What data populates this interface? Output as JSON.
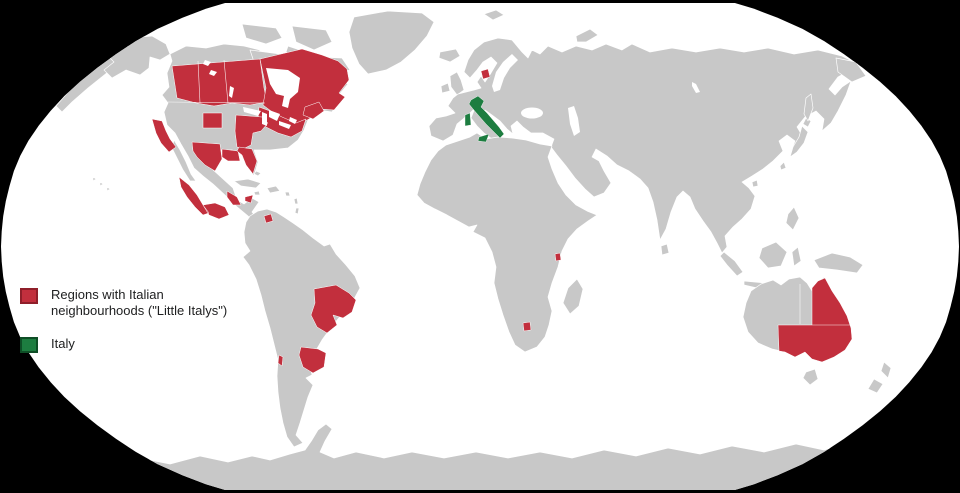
{
  "colors": {
    "background": "#000000",
    "ocean": "#ffffff",
    "land": "#c8c8c8",
    "border": "#ffffff",
    "little_italys_red": "#c22f3d",
    "red_swatch_border": "#8f1f2a",
    "italy_green": "#1d7d40",
    "green_swatch_border": "#0e4e26",
    "legend_text": "#202122"
  },
  "legend": {
    "items": [
      {
        "id": "little-italys",
        "swatch_color": "#c22f3d",
        "label_lines": [
          "Regions with Italian",
          "neighbourhoods (\"Little Italys\")"
        ]
      },
      {
        "id": "italy",
        "swatch_color": "#1d7d40",
        "label_lines": [
          "Italy"
        ]
      }
    ]
  },
  "map": {
    "type": "world map, oval (Robinson-style) projection, white ocean, gray land, black background",
    "red_region_names": [
      "Western Canada prairie provinces",
      "Ontario and Quebec",
      "Atlantic Canada",
      "New England and Northeastern United States",
      "Great Lakes / Midwestern United States",
      "Colorado",
      "California",
      "Texas",
      "Louisiana Gulf Coast",
      "Florida",
      "Western and Central Mexico",
      "Veracruz area",
      "Yucatan area",
      "Caracas area (Venezuela)",
      "Southeastern Brazil",
      "Buenos Aires area (Argentina)",
      "Santiago area (Chile)",
      "Copenhagen area (Denmark)",
      "Mombasa area (Kenya)",
      "Johannesburg area (South Africa)",
      "Eastern Australia"
    ],
    "green_region_names": [
      "Italy"
    ]
  }
}
